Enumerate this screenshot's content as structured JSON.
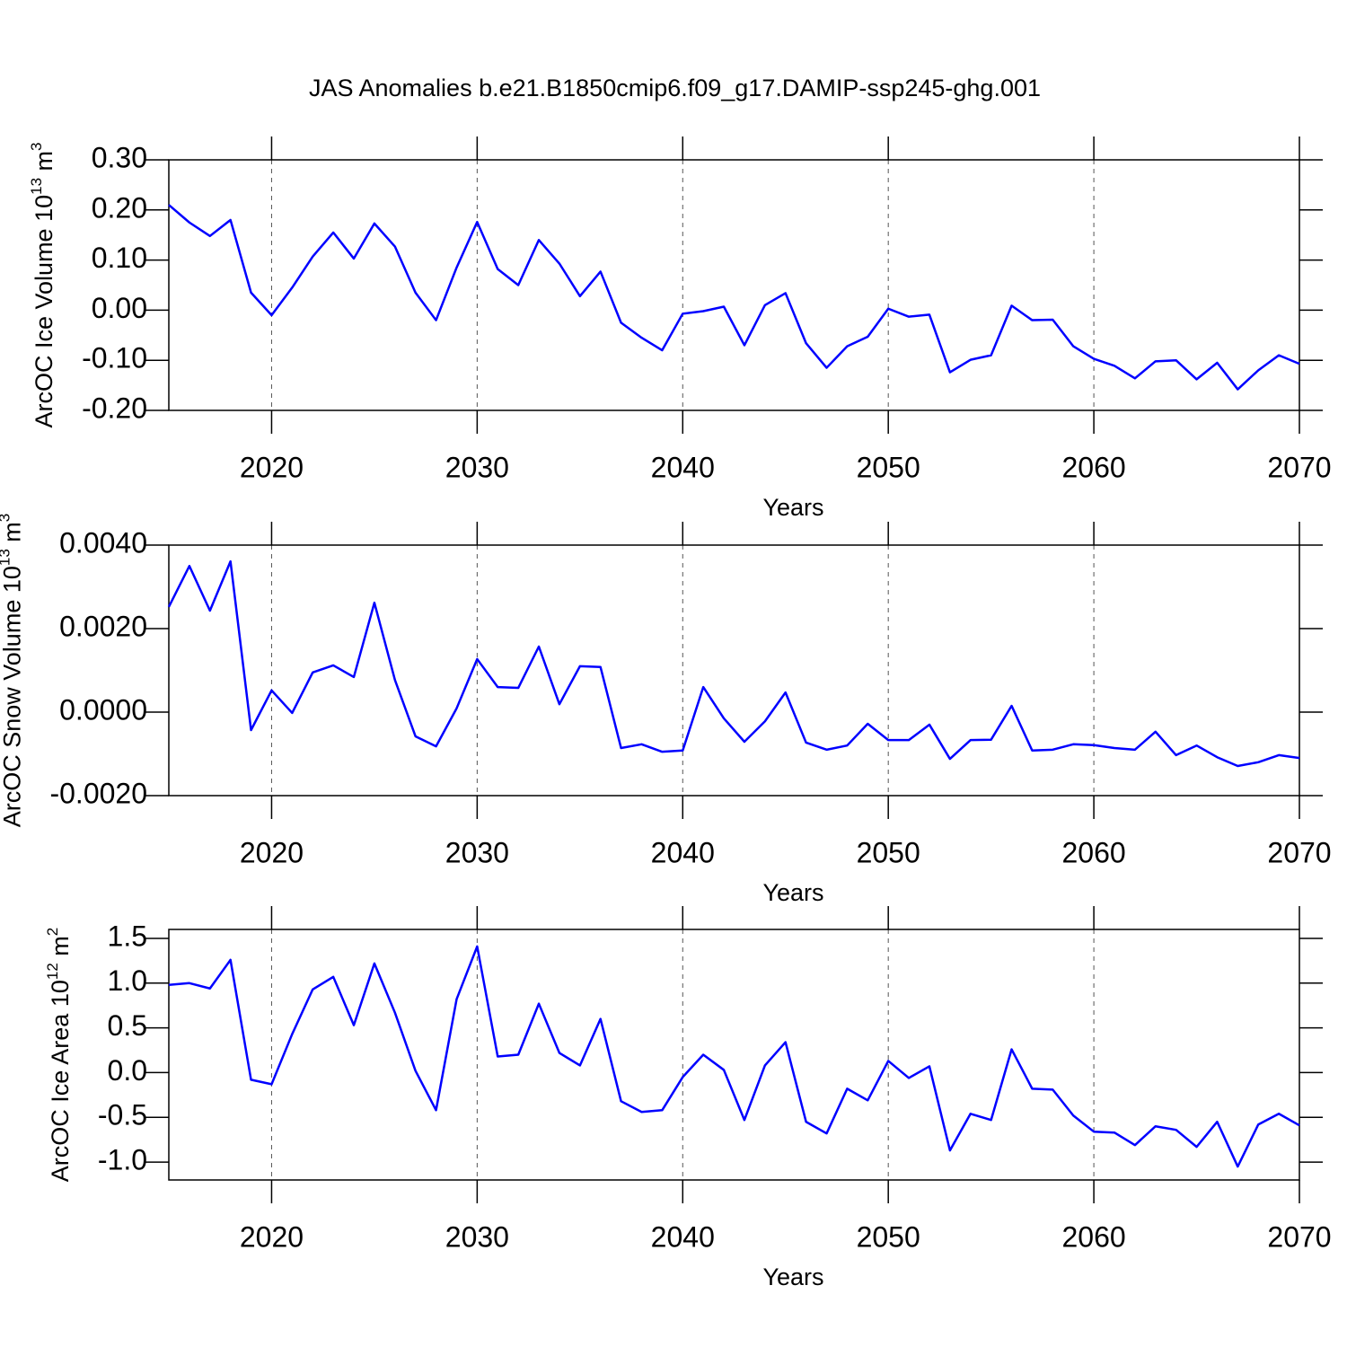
{
  "chart_data": [
    {
      "type": "line",
      "title": "JAS Anomalies b.e21.B1850cmip6.f09_g17.DAMIP-ssp245-ghg.001",
      "xlabel": "Years",
      "ylabel": [
        "ArcOC Ice Volume 10",
        "13",
        " m",
        "3"
      ],
      "color": "#0000ff",
      "grid": true,
      "x": [
        2015,
        2016,
        2017,
        2018,
        2019,
        2020,
        2021,
        2022,
        2023,
        2024,
        2025,
        2026,
        2027,
        2028,
        2029,
        2030,
        2031,
        2032,
        2033,
        2034,
        2035,
        2036,
        2037,
        2038,
        2039,
        2040,
        2041,
        2042,
        2043,
        2044,
        2045,
        2046,
        2047,
        2048,
        2049,
        2050,
        2051,
        2052,
        2053,
        2054,
        2055,
        2056,
        2057,
        2058,
        2059,
        2060,
        2061,
        2062,
        2063,
        2064,
        2065,
        2066,
        2067,
        2068,
        2069,
        2070
      ],
      "values": [
        0.21,
        0.175,
        0.148,
        0.18,
        0.035,
        -0.01,
        0.045,
        0.107,
        0.155,
        0.103,
        0.173,
        0.127,
        0.035,
        -0.02,
        0.085,
        0.176,
        0.082,
        0.05,
        0.14,
        0.093,
        0.028,
        0.077,
        -0.025,
        -0.055,
        -0.08,
        -0.007,
        -0.002,
        0.007,
        -0.07,
        0.01,
        0.034,
        -0.066,
        -0.115,
        -0.072,
        -0.053,
        0.003,
        -0.013,
        -0.009,
        -0.124,
        -0.099,
        -0.09,
        0.009,
        -0.02,
        -0.019,
        -0.072,
        -0.097,
        -0.111,
        -0.136,
        -0.102,
        -0.1,
        -0.138,
        -0.105,
        -0.158,
        -0.12,
        -0.09,
        -0.107
      ],
      "xlim": [
        2015,
        2070
      ],
      "xticks": [
        2020,
        2030,
        2040,
        2050,
        2060,
        2070
      ],
      "ylim": [
        -0.2,
        0.3
      ],
      "yticks": [
        {
          "value": 0.3,
          "label": "0.30"
        },
        {
          "value": 0.2,
          "label": "0.20"
        },
        {
          "value": 0.1,
          "label": "0.10"
        },
        {
          "value": 0,
          "label": "0.00"
        },
        {
          "value": -0.1,
          "label": "-0.10"
        },
        {
          "value": -0.2,
          "label": "-0.20"
        }
      ]
    },
    {
      "type": "line",
      "xlabel": "Years",
      "ylabel": [
        "ArcOC Snow Volume 10",
        "13",
        " m",
        "3"
      ],
      "color": "#0000ff",
      "grid": true,
      "x": [
        2015,
        2016,
        2017,
        2018,
        2019,
        2020,
        2021,
        2022,
        2023,
        2024,
        2025,
        2026,
        2027,
        2028,
        2029,
        2030,
        2031,
        2032,
        2033,
        2034,
        2035,
        2036,
        2037,
        2038,
        2039,
        2040,
        2041,
        2042,
        2043,
        2044,
        2045,
        2046,
        2047,
        2048,
        2049,
        2050,
        2051,
        2052,
        2053,
        2054,
        2055,
        2056,
        2057,
        2058,
        2059,
        2060,
        2061,
        2062,
        2063,
        2064,
        2065,
        2066,
        2067,
        2068,
        2069,
        2070
      ],
      "values": [
        0.00252,
        0.0035,
        0.00243,
        0.00361,
        -0.00043,
        0.00052,
        -2e-05,
        0.00095,
        0.00112,
        0.00084,
        0.00262,
        0.00077,
        -0.00058,
        -0.00082,
        9e-05,
        0.00127,
        0.0006,
        0.00058,
        0.00157,
        0.00019,
        0.0011,
        0.00108,
        -0.00086,
        -0.00077,
        -0.00095,
        -0.00092,
        0.0006,
        -0.00015,
        -0.00071,
        -0.00022,
        0.00047,
        -0.00073,
        -0.0009,
        -0.0008,
        -0.00028,
        -0.00067,
        -0.00067,
        -0.0003,
        -0.00112,
        -0.00067,
        -0.00066,
        0.00015,
        -0.00092,
        -0.0009,
        -0.00077,
        -0.00079,
        -0.00086,
        -0.0009,
        -0.00047,
        -0.00103,
        -0.0008,
        -0.00108,
        -0.00129,
        -0.0012,
        -0.00103,
        -0.0011
      ],
      "xlim": [
        2015,
        2070
      ],
      "xticks": [
        2020,
        2030,
        2040,
        2050,
        2060,
        2070
      ],
      "ylim": [
        -0.002,
        0.004
      ],
      "yticks": [
        {
          "value": 0.004,
          "label": "0.0040"
        },
        {
          "value": 0.002,
          "label": "0.0020"
        },
        {
          "value": 0,
          "label": "0.0000"
        },
        {
          "value": -0.002,
          "label": "-0.0020"
        }
      ]
    },
    {
      "type": "line",
      "xlabel": "Years",
      "ylabel": [
        "ArcOC Ice Area 10",
        "12",
        " m",
        "2"
      ],
      "color": "#0000ff",
      "grid": true,
      "x": [
        2015,
        2016,
        2017,
        2018,
        2019,
        2020,
        2021,
        2022,
        2023,
        2024,
        2025,
        2026,
        2027,
        2028,
        2029,
        2030,
        2031,
        2032,
        2033,
        2034,
        2035,
        2036,
        2037,
        2038,
        2039,
        2040,
        2041,
        2042,
        2043,
        2044,
        2045,
        2046,
        2047,
        2048,
        2049,
        2050,
        2051,
        2052,
        2053,
        2054,
        2055,
        2056,
        2057,
        2058,
        2059,
        2060,
        2061,
        2062,
        2063,
        2064,
        2065,
        2066,
        2067,
        2068,
        2069,
        2070
      ],
      "values": [
        0.98,
        1.0,
        0.94,
        1.26,
        -0.08,
        -0.13,
        0.43,
        0.93,
        1.07,
        0.53,
        1.22,
        0.67,
        0.02,
        -0.42,
        0.82,
        1.41,
        0.18,
        0.2,
        0.77,
        0.22,
        0.08,
        0.6,
        -0.32,
        -0.44,
        -0.42,
        -0.05,
        0.2,
        0.03,
        -0.53,
        0.08,
        0.34,
        -0.55,
        -0.68,
        -0.18,
        -0.31,
        0.13,
        -0.06,
        0.07,
        -0.87,
        -0.46,
        -0.53,
        0.26,
        -0.18,
        -0.19,
        -0.48,
        -0.66,
        -0.67,
        -0.81,
        -0.6,
        -0.64,
        -0.83,
        -0.55,
        -1.05,
        -0.58,
        -0.46,
        -0.59
      ],
      "xlim": [
        2015,
        2070
      ],
      "xticks": [
        2020,
        2030,
        2040,
        2050,
        2060,
        2070
      ],
      "ylim": [
        -1.2,
        1.6
      ],
      "yticks": [
        1.5,
        {
          "value": 1,
          "label": "1.0"
        },
        0.5,
        {
          "value": 0,
          "label": "0.0"
        },
        -0.5,
        {
          "value": -1,
          "label": "-1.0"
        }
      ]
    }
  ]
}
